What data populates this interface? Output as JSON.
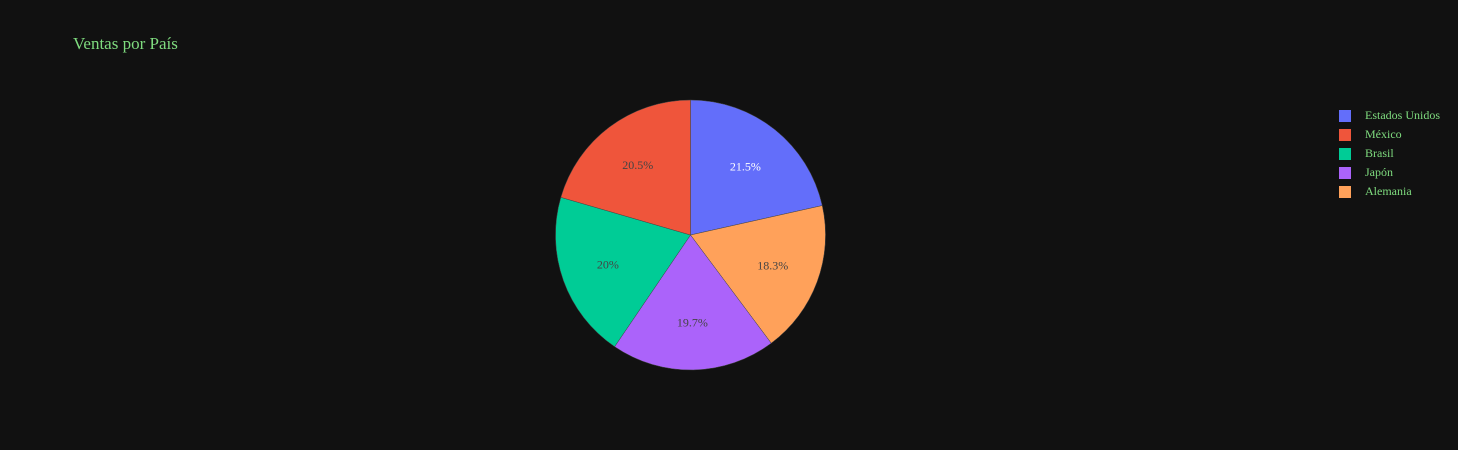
{
  "chart_data": {
    "type": "pie",
    "title": "Ventas por País",
    "categories": [
      "Estados Unidos",
      "México",
      "Brasil",
      "Japón",
      "Alemania"
    ],
    "values": [
      21.5,
      20.5,
      20,
      19.7,
      18.3
    ],
    "labels": [
      "21.5%",
      "20.5%",
      "20%",
      "19.7%",
      "18.3%"
    ],
    "slice_order": [
      "Estados Unidos",
      "Alemania",
      "Japón",
      "Brasil",
      "México"
    ],
    "direction": "clockwise",
    "start": "top",
    "colors": {
      "Estados Unidos": "#636efa",
      "México": "#ef553b",
      "Brasil": "#00cc96",
      "Japón": "#ab63fa",
      "Alemania": "#ffa15a"
    },
    "label_colors": {
      "Estados Unidos": "#ffffff",
      "México": "#444444",
      "Brasil": "#444444",
      "Japón": "#444444",
      "Alemania": "#444444"
    },
    "legend_position": "right"
  },
  "theme": {
    "background": "#111111",
    "text_color": "#7fdc7f"
  }
}
